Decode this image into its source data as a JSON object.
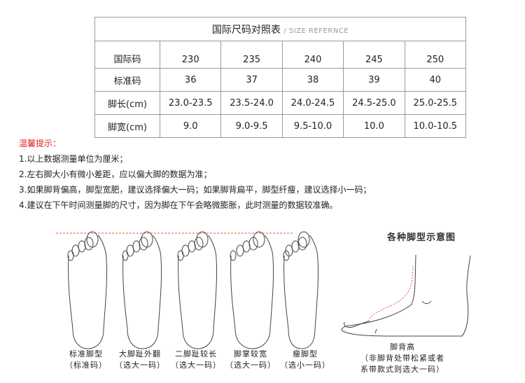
{
  "table": {
    "title": "国际尺码对照表",
    "subtitle": "/ SIZE REFERNCE",
    "rows": [
      {
        "label": "国际码",
        "values": [
          "230",
          "235",
          "240",
          "245",
          "250"
        ]
      },
      {
        "label": "标准码",
        "values": [
          "36",
          "37",
          "38",
          "39",
          "40"
        ]
      },
      {
        "label": "脚长(cm)",
        "values": [
          "23.0-23.5",
          "23.5-24.0",
          "24.0-24.5",
          "24.5-25.0",
          "25.0-25.5"
        ]
      },
      {
        "label": "脚宽(cm)",
        "values": [
          "9.0",
          "9.0-9.5",
          "9.5-10.0",
          "10.0",
          "10.0-10.5"
        ]
      }
    ]
  },
  "tips": {
    "heading": "温馨提示：",
    "lines": [
      "1.以上数据测量单位为厘米；",
      "2.左右脚大小有微小差距，应以偏大脚的数据为准；",
      "3.如果脚背偏高，脚型宽肥，建议选择偏大一码；如果脚背扁平，脚型纤瘦，建议选择小一码；",
      "4.建议在下午时间测量脚的尺寸，因为脚在下午会略微膨胀，此时测量的数据较准确。"
    ]
  },
  "diagram": {
    "title": "各种脚型示意图",
    "feet": [
      {
        "name": "标准脚型",
        "advice": "（标准码）"
      },
      {
        "name": "大脚趾外翻",
        "advice": "（选大一码）"
      },
      {
        "name": "二脚趾较长",
        "advice": "（选大一码）"
      },
      {
        "name": "脚掌较宽",
        "advice": "（选大一码）"
      },
      {
        "name": "瘦脚型",
        "advice": "（选小一码）"
      }
    ],
    "instep": {
      "name": "脚背高",
      "line1": "（非脚背处带松紧或者",
      "line2": "系带款式则选大一码）"
    },
    "accent_color": "#e8553a"
  }
}
